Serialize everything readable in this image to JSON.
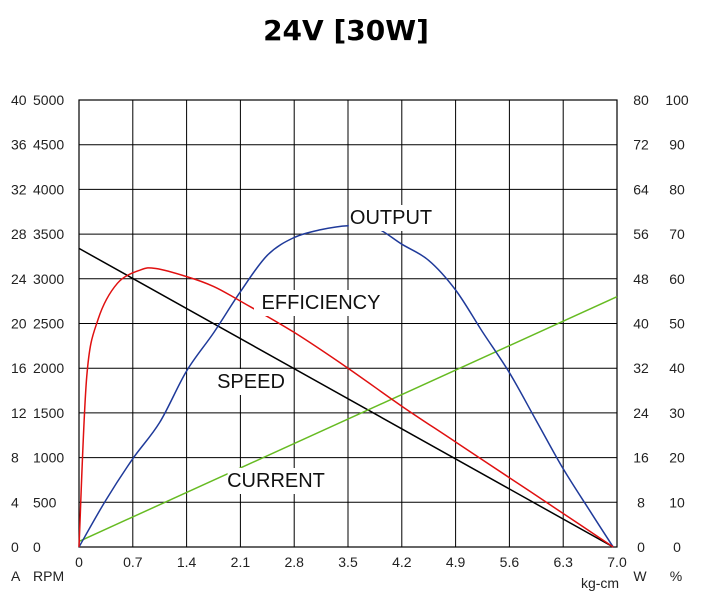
{
  "chart_data": {
    "type": "line",
    "title": "24V [30W]",
    "x_axis": {
      "unit": "kg-cm",
      "ticks": [
        "0",
        "0.7",
        "1.4",
        "2.1",
        "2.8",
        "3.5",
        "4.2",
        "4.9",
        "5.6",
        "6.3",
        "7.0"
      ],
      "range": [
        0,
        7.0
      ]
    },
    "y_axes": {
      "current": {
        "unit": "A",
        "ticks": [
          "0",
          "4",
          "8",
          "12",
          "16",
          "20",
          "24",
          "28",
          "32",
          "36",
          "40"
        ],
        "range": [
          0,
          40
        ]
      },
      "speed": {
        "unit": "RPM",
        "ticks": [
          "0",
          "500",
          "1000",
          "1500",
          "2000",
          "2500",
          "3000",
          "3500",
          "4000",
          "4500",
          "5000"
        ],
        "range": [
          0,
          5000
        ]
      },
      "output": {
        "unit": "W",
        "ticks": [
          "0",
          "8",
          "16",
          "24",
          "32",
          "40",
          "48",
          "56",
          "64",
          "72",
          "80"
        ],
        "range": [
          0,
          80
        ]
      },
      "efficiency": {
        "unit": "%",
        "ticks": [
          "0",
          "10",
          "20",
          "30",
          "40",
          "50",
          "60",
          "70",
          "80",
          "90",
          "100"
        ],
        "range": [
          0,
          100
        ]
      }
    },
    "grid": true,
    "series": [
      {
        "name": "SPEED",
        "axis": "speed",
        "color": "#000000",
        "x": [
          0,
          6.95
        ],
        "y": [
          3340,
          0
        ]
      },
      {
        "name": "CURRENT",
        "axis": "current",
        "color": "#66bb22",
        "x": [
          0,
          7.0
        ],
        "y": [
          0.5,
          22.4
        ]
      },
      {
        "name": "OUTPUT",
        "axis": "output",
        "color": "#1f3a9a",
        "x": [
          0,
          0.35,
          0.7,
          1.05,
          1.4,
          1.75,
          2.1,
          2.45,
          2.8,
          3.15,
          3.5,
          3.85,
          4.2,
          4.55,
          4.9,
          5.25,
          5.6,
          5.95,
          6.3,
          6.65,
          6.95
        ],
        "y": [
          0,
          8.4,
          15.8,
          22.3,
          31.5,
          38.3,
          45.7,
          52.2,
          55.4,
          56.8,
          57.5,
          57.2,
          54.2,
          51.3,
          46.0,
          38.5,
          31.2,
          22.6,
          14.0,
          6.4,
          0
        ]
      },
      {
        "name": "EFFICIENCY",
        "axis": "efficiency",
        "color": "#e01010",
        "x": [
          0,
          0.1,
          0.25,
          0.5,
          0.8,
          1.0,
          1.4,
          1.75,
          2.1,
          2.8,
          3.5,
          4.2,
          4.9,
          5.6,
          6.3,
          6.95
        ],
        "y": [
          0,
          38,
          51,
          59,
          62,
          62.3,
          60.5,
          58.3,
          55.0,
          48.0,
          40.0,
          31.5,
          23.5,
          15.5,
          7.5,
          0
        ]
      }
    ],
    "annotations": [
      "OUTPUT",
      "EFFICIENCY",
      "SPEED",
      "CURRENT"
    ],
    "x_unit_label": "kg-cm"
  }
}
